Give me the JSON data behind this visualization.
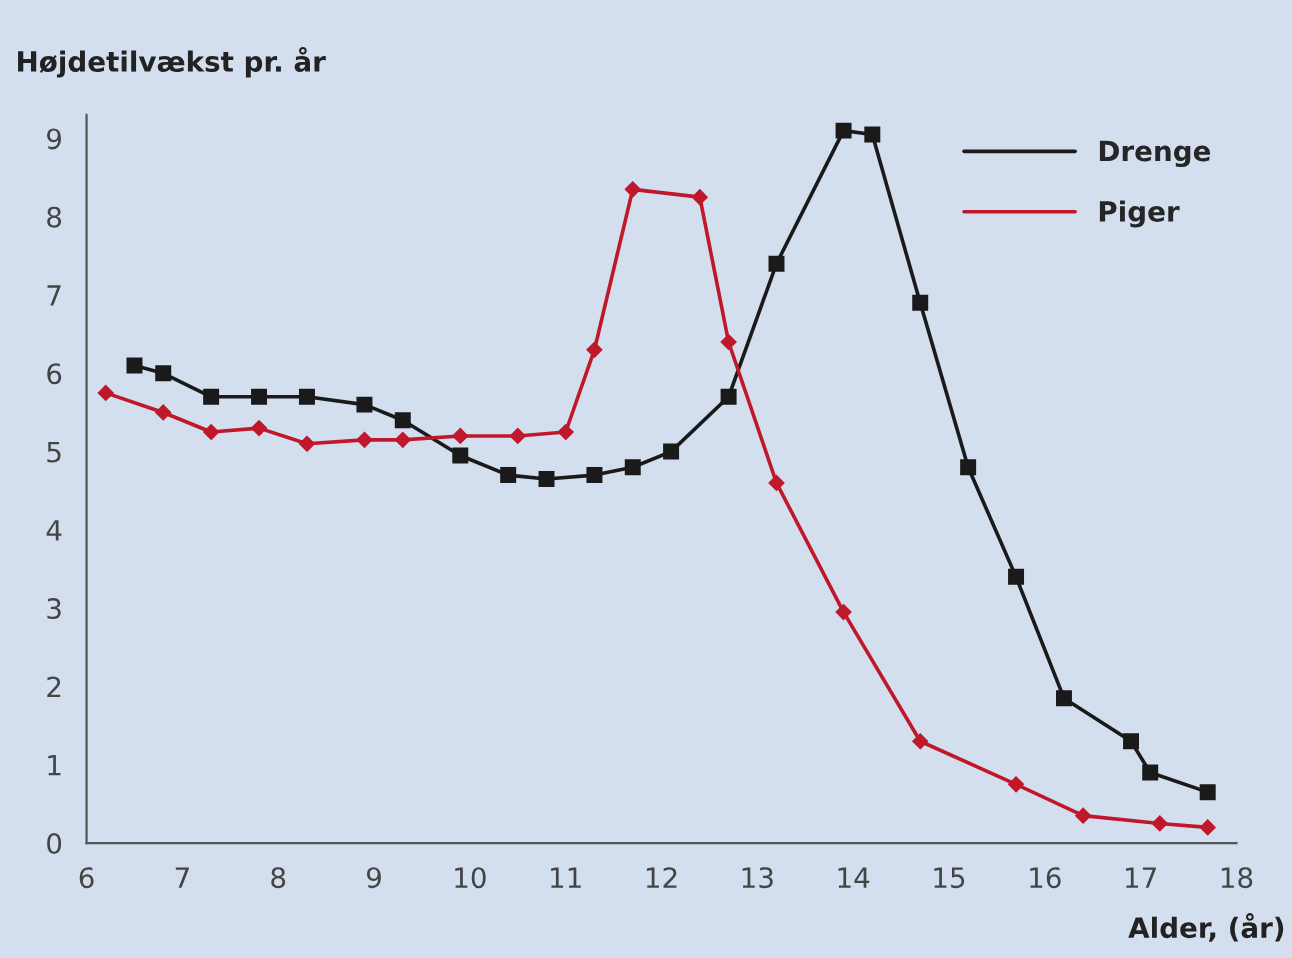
{
  "chart_data": {
    "type": "line",
    "ylabel": "Højdetilvækst pr. år",
    "xlabel": "Alder, (år)",
    "xlim": [
      6,
      18
    ],
    "ylim": [
      0,
      9.3
    ],
    "xticks": [
      6,
      7,
      8,
      9,
      10,
      11,
      12,
      13,
      14,
      15,
      16,
      17,
      18
    ],
    "yticks": [
      0,
      1,
      2,
      3,
      4,
      5,
      6,
      7,
      8,
      9
    ],
    "grid": false,
    "legend": "top right",
    "line_style": "solid",
    "series": [
      {
        "name": "Drenge",
        "color": "#1a1a1a",
        "marker": "square",
        "x": [
          6.5,
          6.8,
          7.3,
          7.8,
          8.3,
          8.9,
          9.3,
          9.9,
          10.4,
          10.8,
          11.3,
          11.7,
          12.1,
          12.7,
          13.2,
          13.9,
          14.2,
          14.7,
          15.2,
          15.7,
          16.2,
          16.9,
          17.1,
          17.7
        ],
        "values": [
          6.1,
          6.0,
          5.7,
          5.7,
          5.7,
          5.6,
          5.4,
          4.95,
          4.7,
          4.65,
          4.7,
          4.8,
          5.0,
          5.7,
          7.4,
          9.1,
          9.05,
          6.9,
          4.8,
          3.4,
          1.85,
          1.3,
          0.9,
          0.65
        ]
      },
      {
        "name": "Piger",
        "color": "#c0182a",
        "marker": "diamond",
        "x": [
          6.2,
          6.8,
          7.3,
          7.8,
          8.3,
          8.9,
          9.3,
          9.9,
          10.5,
          11.0,
          11.3,
          11.7,
          12.4,
          12.7,
          13.2,
          13.9,
          14.7,
          15.7,
          16.4,
          17.2,
          17.7
        ],
        "values": [
          5.75,
          5.5,
          5.25,
          5.3,
          5.1,
          5.15,
          5.15,
          5.2,
          5.2,
          5.25,
          6.3,
          8.35,
          8.25,
          6.4,
          4.6,
          2.95,
          1.3,
          0.75,
          0.35,
          0.25,
          0.2
        ]
      }
    ]
  }
}
